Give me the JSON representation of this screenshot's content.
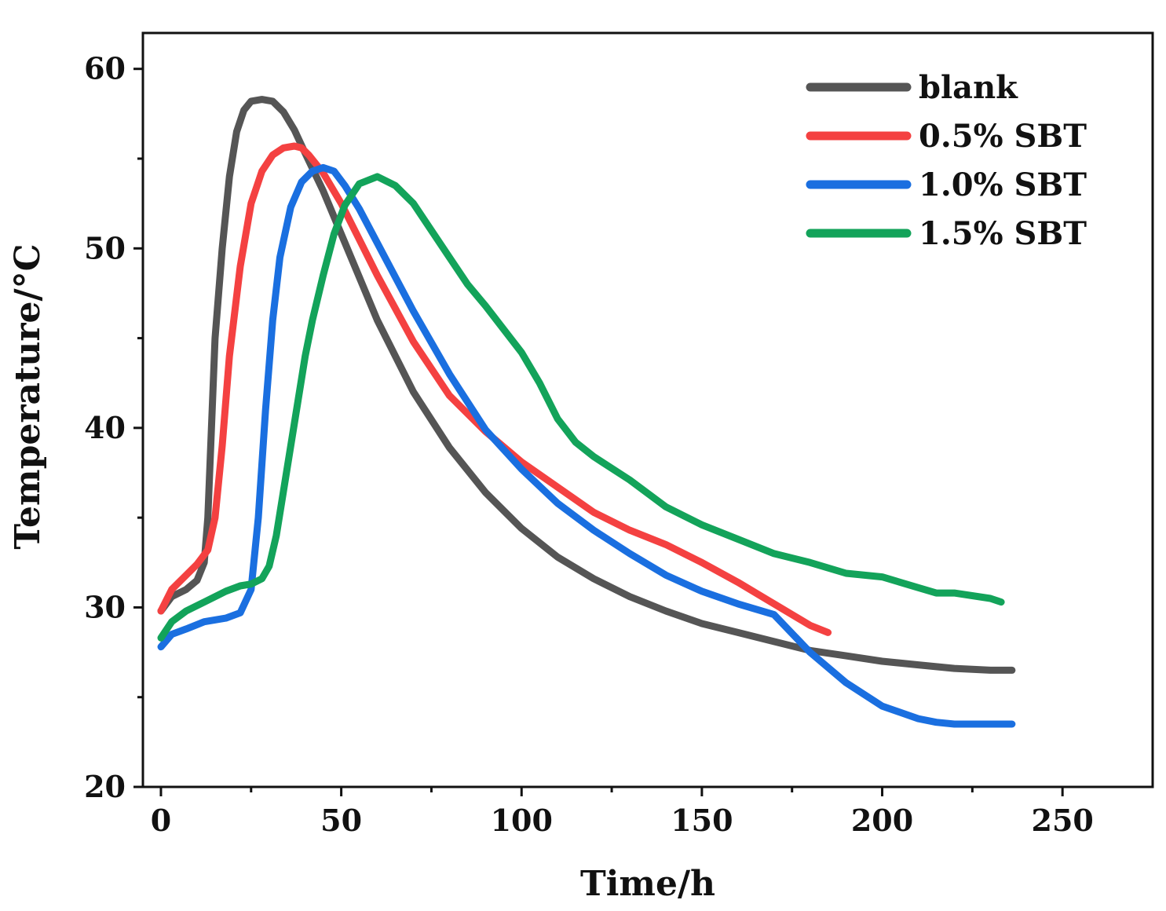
{
  "chart_data": {
    "type": "line",
    "title": "",
    "xlabel": "Time/h",
    "ylabel": "Temperature/°C",
    "xlim": [
      -5,
      275
    ],
    "ylim": [
      20,
      62
    ],
    "x_ticks": [
      0,
      50,
      100,
      150,
      200,
      250
    ],
    "x_tick_labels": [
      "0",
      "50",
      "100",
      "150",
      "200",
      "250"
    ],
    "y_ticks": [
      20,
      30,
      40,
      50,
      60
    ],
    "y_tick_labels": [
      "20",
      "30",
      "40",
      "50",
      "60"
    ],
    "grid": false,
    "legend_position": "top-right",
    "series": [
      {
        "name": "blank",
        "color": "#555555",
        "x": [
          0,
          3,
          7,
          10,
          12,
          13,
          14,
          15,
          17,
          19,
          21,
          23,
          25,
          28,
          31,
          34,
          37,
          40,
          45,
          50,
          55,
          60,
          70,
          80,
          90,
          100,
          110,
          120,
          130,
          140,
          150,
          160,
          170,
          180,
          190,
          200,
          210,
          220,
          230,
          236
        ],
        "values": [
          29.8,
          30.6,
          31,
          31.5,
          32.5,
          35,
          40,
          45,
          50,
          54,
          56.5,
          57.7,
          58.2,
          58.3,
          58.2,
          57.6,
          56.6,
          55.3,
          53.2,
          50.8,
          48.4,
          46,
          42,
          38.9,
          36.4,
          34.4,
          32.8,
          31.6,
          30.6,
          29.8,
          29.1,
          28.6,
          28.1,
          27.6,
          27.3,
          27,
          26.8,
          26.6,
          26.5,
          26.5
        ]
      },
      {
        "name": "0.5% SBT",
        "color": "#f44141",
        "x": [
          0,
          3,
          7,
          10,
          13,
          15,
          17,
          19,
          22,
          25,
          28,
          31,
          34,
          37,
          39,
          41,
          45,
          50,
          55,
          60,
          70,
          80,
          90,
          100,
          110,
          120,
          130,
          140,
          150,
          160,
          170,
          180,
          185
        ],
        "values": [
          29.8,
          31,
          31.8,
          32.4,
          33.2,
          35,
          39,
          44,
          49,
          52.5,
          54.3,
          55.2,
          55.6,
          55.7,
          55.6,
          55.2,
          54.2,
          52.5,
          50.5,
          48.5,
          44.8,
          41.8,
          39.8,
          38.1,
          36.7,
          35.3,
          34.3,
          33.5,
          32.5,
          31.4,
          30.2,
          29,
          28.6
        ]
      },
      {
        "name": "1.0% SBT",
        "color": "#1a6fe0",
        "x": [
          0,
          3,
          7,
          12,
          18,
          22,
          25,
          27,
          29,
          31,
          33,
          36,
          39,
          42,
          45,
          48,
          51,
          55,
          60,
          70,
          80,
          90,
          100,
          110,
          120,
          130,
          140,
          150,
          160,
          170,
          180,
          190,
          200,
          210,
          215,
          220,
          230,
          236
        ],
        "values": [
          27.8,
          28.5,
          28.8,
          29.2,
          29.4,
          29.7,
          31,
          35,
          41,
          46,
          49.5,
          52.3,
          53.7,
          54.3,
          54.5,
          54.3,
          53.5,
          52.2,
          50.3,
          46.5,
          43,
          39.9,
          37.7,
          35.8,
          34.3,
          33,
          31.8,
          30.9,
          30.2,
          29.6,
          27.5,
          25.8,
          24.5,
          23.8,
          23.6,
          23.5,
          23.5,
          23.5
        ]
      },
      {
        "name": "1.5% SBT",
        "color": "#13a35a",
        "x": [
          0,
          3,
          7,
          12,
          18,
          22,
          25,
          28,
          30,
          32,
          34,
          36,
          38,
          40,
          42,
          45,
          48,
          51,
          55,
          60,
          65,
          70,
          75,
          80,
          85,
          90,
          95,
          100,
          105,
          110,
          115,
          120,
          130,
          140,
          150,
          160,
          170,
          180,
          190,
          200,
          210,
          215,
          220,
          230,
          233
        ],
        "values": [
          28.3,
          29.2,
          29.8,
          30.3,
          30.9,
          31.2,
          31.3,
          31.6,
          32.3,
          34,
          36.5,
          39,
          41.5,
          44,
          46,
          48.5,
          50.8,
          52.4,
          53.6,
          54,
          53.5,
          52.5,
          51,
          49.5,
          48,
          46.8,
          45.5,
          44.2,
          42.5,
          40.5,
          39.2,
          38.4,
          37.1,
          35.6,
          34.6,
          33.8,
          33,
          32.5,
          31.9,
          31.7,
          31.1,
          30.8,
          30.8,
          30.5,
          30.3
        ]
      }
    ]
  }
}
